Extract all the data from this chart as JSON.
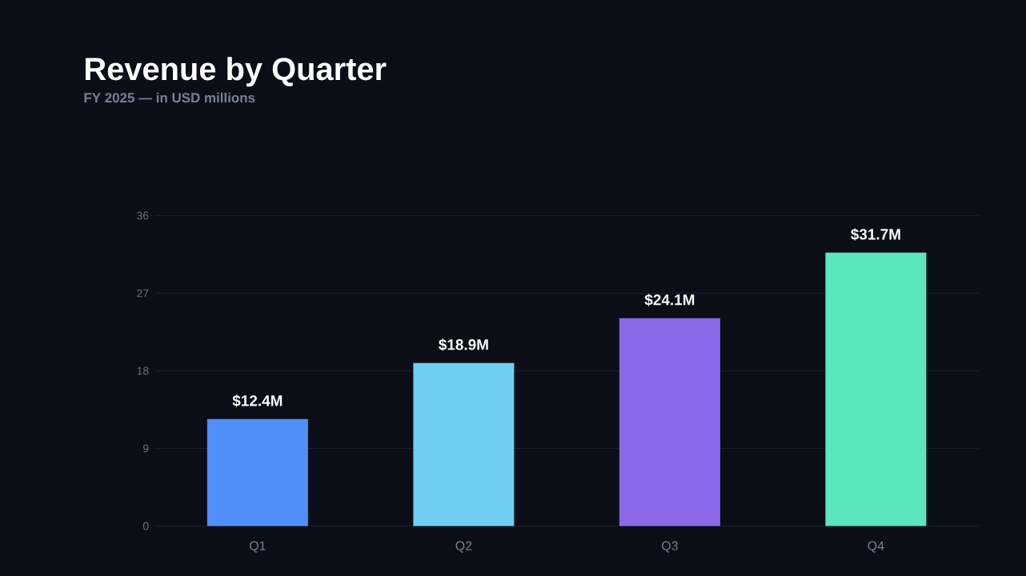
{
  "chart_data": {
    "type": "bar",
    "title": "Revenue by Quarter",
    "subtitle": "FY 2025 — in USD millions",
    "categories": [
      "Q1",
      "Q2",
      "Q3",
      "Q4"
    ],
    "values": [
      12.4,
      18.9,
      24.1,
      31.7
    ],
    "colors": [
      "#4f8ff7",
      "#6ecff2",
      "#8b68e8",
      "#5ce6bf"
    ],
    "value_labels": [
      "$12.4M",
      "$18.9M",
      "$24.1M",
      "$31.7M"
    ],
    "ylim": [
      0,
      36
    ],
    "yticks": [
      0,
      9,
      18,
      27,
      36
    ],
    "grid": "y"
  }
}
